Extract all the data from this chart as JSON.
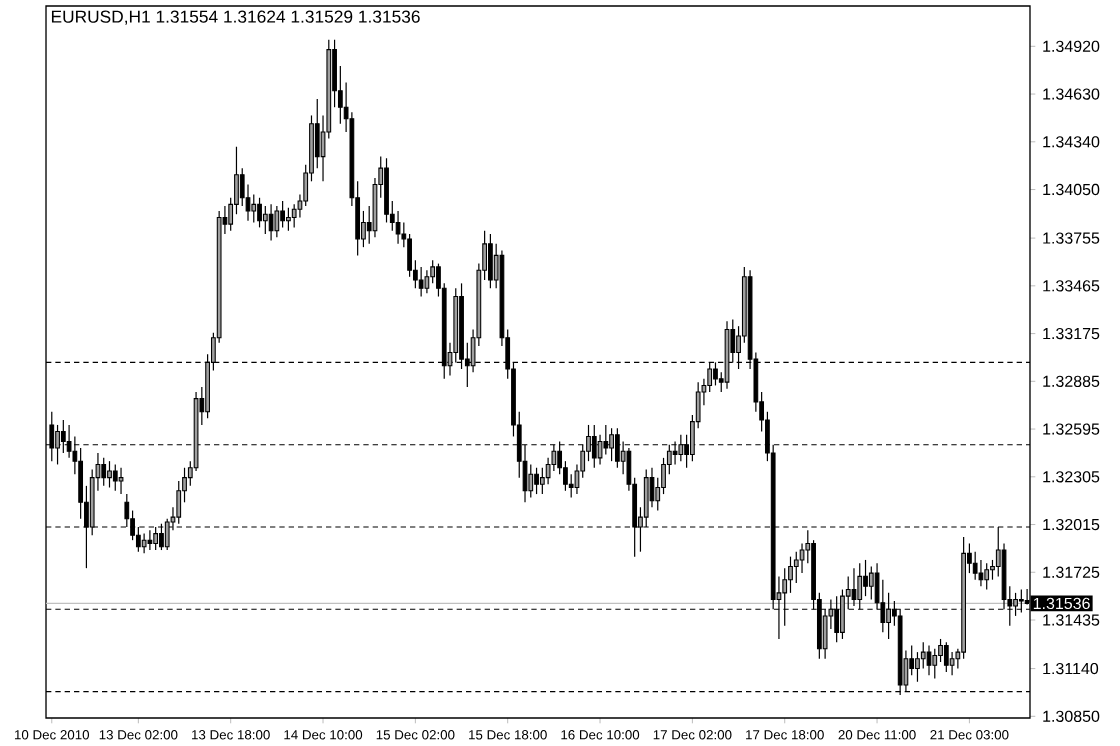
{
  "chart_data": {
    "type": "candlestick",
    "title": "EURUSD,H1  1.31554 1.31624 1.31529 1.31536",
    "categories": [
      "10 Dec 2010",
      null,
      null,
      null,
      null,
      null,
      null,
      null,
      null,
      null,
      null,
      null,
      null,
      null,
      null,
      "13 Dec 02:00",
      null,
      null,
      null,
      null,
      null,
      null,
      null,
      null,
      null,
      null,
      null,
      null,
      null,
      null,
      null,
      "13 Dec 18:00",
      null,
      null,
      null,
      null,
      null,
      null,
      null,
      null,
      null,
      null,
      null,
      null,
      null,
      null,
      null,
      "14 Dec 10:00",
      null,
      null,
      null,
      null,
      null,
      null,
      null,
      null,
      null,
      null,
      null,
      null,
      null,
      null,
      null,
      "15 Dec 02:00",
      null,
      null,
      null,
      null,
      null,
      null,
      null,
      null,
      null,
      null,
      null,
      null,
      null,
      null,
      null,
      "15 Dec 18:00",
      null,
      null,
      null,
      null,
      null,
      null,
      null,
      null,
      null,
      null,
      null,
      null,
      null,
      null,
      null,
      "16 Dec 10:00",
      null,
      null,
      null,
      null,
      null,
      null,
      null,
      null,
      null,
      null,
      null,
      null,
      null,
      null,
      null,
      "17 Dec 02:00",
      null,
      null,
      null,
      null,
      null,
      null,
      null,
      null,
      null,
      null,
      null,
      null,
      null,
      null,
      null,
      "17 Dec 18:00",
      null,
      null,
      null,
      null,
      null,
      null,
      null,
      null,
      null,
      null,
      null,
      null,
      null,
      null,
      null,
      "20 Dec 11:00",
      null,
      null,
      null,
      null,
      null,
      null,
      null,
      null,
      null,
      null,
      null,
      null,
      null,
      null,
      null,
      "21 Dec 03:00",
      null,
      null,
      null,
      null,
      null,
      null,
      null,
      null,
      null,
      null
    ],
    "ohlc": [
      [
        1.3262,
        1.327,
        1.324,
        1.3248
      ],
      [
        1.3248,
        1.3262,
        1.3238,
        1.3258
      ],
      [
        1.3258,
        1.3265,
        1.3245,
        1.3252
      ],
      [
        1.3252,
        1.3262,
        1.3242,
        1.3246
      ],
      [
        1.3246,
        1.3255,
        1.3232,
        1.324
      ],
      [
        1.324,
        1.3248,
        1.3205,
        1.3215
      ],
      [
        1.3215,
        1.3225,
        1.3175,
        1.32
      ],
      [
        1.32,
        1.3235,
        1.3195,
        1.323
      ],
      [
        1.323,
        1.3245,
        1.3222,
        1.3238
      ],
      [
        1.3238,
        1.3242,
        1.3225,
        1.323
      ],
      [
        1.323,
        1.324,
        1.3224,
        1.3234
      ],
      [
        1.3234,
        1.3238,
        1.3222,
        1.3228
      ],
      [
        1.3228,
        1.3236,
        1.322,
        1.323
      ],
      [
        1.3215,
        1.322,
        1.32,
        1.3205
      ],
      [
        1.3205,
        1.321,
        1.3192,
        1.3195
      ],
      [
        1.3195,
        1.32,
        1.3185,
        1.3188
      ],
      [
        1.3188,
        1.3196,
        1.3184,
        1.3192
      ],
      [
        1.3192,
        1.3198,
        1.3186,
        1.319
      ],
      [
        1.319,
        1.32,
        1.3186,
        1.3196
      ],
      [
        1.3196,
        1.3202,
        1.3186,
        1.3188
      ],
      [
        1.3188,
        1.3205,
        1.3186,
        1.3203
      ],
      [
        1.3203,
        1.3212,
        1.3198,
        1.3206
      ],
      [
        1.3206,
        1.3228,
        1.3202,
        1.3222
      ],
      [
        1.3222,
        1.3236,
        1.3215,
        1.323
      ],
      [
        1.323,
        1.324,
        1.3225,
        1.3236
      ],
      [
        1.3236,
        1.3282,
        1.3234,
        1.3278
      ],
      [
        1.3278,
        1.3285,
        1.3262,
        1.327
      ],
      [
        1.327,
        1.3305,
        1.3266,
        1.33
      ],
      [
        1.33,
        1.3318,
        1.3295,
        1.3315
      ],
      [
        1.3315,
        1.3392,
        1.3312,
        1.3388
      ],
      [
        1.3388,
        1.3395,
        1.3378,
        1.3384
      ],
      [
        1.3384,
        1.34,
        1.338,
        1.3396
      ],
      [
        1.3396,
        1.3431,
        1.339,
        1.3414
      ],
      [
        1.3414,
        1.3418,
        1.3395,
        1.34
      ],
      [
        1.34,
        1.3408,
        1.3386,
        1.3392
      ],
      [
        1.3392,
        1.3402,
        1.3385,
        1.3396
      ],
      [
        1.3396,
        1.34,
        1.3382,
        1.3386
      ],
      [
        1.3386,
        1.3395,
        1.3378,
        1.339
      ],
      [
        1.339,
        1.3396,
        1.3374,
        1.338
      ],
      [
        1.338,
        1.3395,
        1.3376,
        1.3392
      ],
      [
        1.3392,
        1.3398,
        1.3382,
        1.3386
      ],
      [
        1.3386,
        1.3394,
        1.338,
        1.3388
      ],
      [
        1.3388,
        1.3396,
        1.3382,
        1.3393
      ],
      [
        1.3393,
        1.3402,
        1.3388,
        1.3398
      ],
      [
        1.3398,
        1.342,
        1.3395,
        1.3415
      ],
      [
        1.3415,
        1.345,
        1.341,
        1.3445
      ],
      [
        1.3445,
        1.346,
        1.3418,
        1.3425
      ],
      [
        1.3425,
        1.345,
        1.341,
        1.344
      ],
      [
        1.344,
        1.3496,
        1.3436,
        1.349
      ],
      [
        1.349,
        1.3496,
        1.3455,
        1.3465
      ],
      [
        1.3465,
        1.348,
        1.3445,
        1.3455
      ],
      [
        1.3455,
        1.347,
        1.344,
        1.3448
      ],
      [
        1.3448,
        1.3452,
        1.3395,
        1.34
      ],
      [
        1.34,
        1.341,
        1.3365,
        1.3375
      ],
      [
        1.3375,
        1.3392,
        1.337,
        1.3385
      ],
      [
        1.3385,
        1.3395,
        1.3372,
        1.338
      ],
      [
        1.338,
        1.3412,
        1.3376,
        1.3408
      ],
      [
        1.3408,
        1.3425,
        1.34,
        1.3418
      ],
      [
        1.3418,
        1.3424,
        1.3385,
        1.339
      ],
      [
        1.339,
        1.3398,
        1.338,
        1.3385
      ],
      [
        1.3385,
        1.3392,
        1.3372,
        1.3378
      ],
      [
        1.3378,
        1.3385,
        1.337,
        1.3375
      ],
      [
        1.3375,
        1.3378,
        1.3352,
        1.3356
      ],
      [
        1.3356,
        1.3362,
        1.3345,
        1.335
      ],
      [
        1.335,
        1.3358,
        1.334,
        1.3345
      ],
      [
        1.3345,
        1.3356,
        1.3342,
        1.3352
      ],
      [
        1.3352,
        1.3362,
        1.3348,
        1.3358
      ],
      [
        1.3358,
        1.336,
        1.334,
        1.3345
      ],
      [
        1.3345,
        1.3348,
        1.329,
        1.3298
      ],
      [
        1.3298,
        1.3312,
        1.3292,
        1.3306
      ],
      [
        1.3306,
        1.3345,
        1.33,
        1.334
      ],
      [
        1.334,
        1.3348,
        1.3296,
        1.3302
      ],
      [
        1.3302,
        1.3312,
        1.3285,
        1.3298
      ],
      [
        1.3298,
        1.332,
        1.3294,
        1.3315
      ],
      [
        1.3315,
        1.336,
        1.331,
        1.3356
      ],
      [
        1.3356,
        1.338,
        1.335,
        1.3372
      ],
      [
        1.3372,
        1.3378,
        1.3345,
        1.335
      ],
      [
        1.335,
        1.3372,
        1.3345,
        1.3365
      ],
      [
        1.3365,
        1.3368,
        1.331,
        1.3315
      ],
      [
        1.3315,
        1.332,
        1.329,
        1.3296
      ],
      [
        1.3296,
        1.33,
        1.3255,
        1.3262
      ],
      [
        1.3262,
        1.327,
        1.323,
        1.324
      ],
      [
        1.324,
        1.325,
        1.3215,
        1.3222
      ],
      [
        1.3222,
        1.3238,
        1.3218,
        1.3232
      ],
      [
        1.3232,
        1.3236,
        1.322,
        1.3226
      ],
      [
        1.3226,
        1.3236,
        1.322,
        1.323
      ],
      [
        1.323,
        1.3242,
        1.3226,
        1.3238
      ],
      [
        1.3238,
        1.325,
        1.3234,
        1.3246
      ],
      [
        1.3246,
        1.3252,
        1.3232,
        1.3236
      ],
      [
        1.3236,
        1.324,
        1.3222,
        1.3226
      ],
      [
        1.3226,
        1.3232,
        1.3218,
        1.3224
      ],
      [
        1.3224,
        1.3238,
        1.322,
        1.3234
      ],
      [
        1.3234,
        1.325,
        1.323,
        1.3246
      ],
      [
        1.3246,
        1.3262,
        1.324,
        1.3255
      ],
      [
        1.3255,
        1.3262,
        1.3236,
        1.3242
      ],
      [
        1.3242,
        1.3256,
        1.3238,
        1.3252
      ],
      [
        1.3252,
        1.3262,
        1.3244,
        1.3248
      ],
      [
        1.3248,
        1.326,
        1.324,
        1.3256
      ],
      [
        1.3256,
        1.326,
        1.3236,
        1.324
      ],
      [
        1.324,
        1.3252,
        1.3232,
        1.3246
      ],
      [
        1.3246,
        1.3248,
        1.3222,
        1.3226
      ],
      [
        1.3226,
        1.323,
        1.3182,
        1.32
      ],
      [
        1.32,
        1.3212,
        1.3185,
        1.3206
      ],
      [
        1.3206,
        1.3235,
        1.32,
        1.323
      ],
      [
        1.323,
        1.3236,
        1.3212,
        1.3216
      ],
      [
        1.3216,
        1.323,
        1.321,
        1.3224
      ],
      [
        1.3224,
        1.3242,
        1.322,
        1.3238
      ],
      [
        1.3238,
        1.325,
        1.3232,
        1.3246
      ],
      [
        1.3246,
        1.3252,
        1.3238,
        1.3244
      ],
      [
        1.3244,
        1.3256,
        1.324,
        1.325
      ],
      [
        1.325,
        1.3256,
        1.3236,
        1.3244
      ],
      [
        1.3244,
        1.3268,
        1.324,
        1.3264
      ],
      [
        1.3264,
        1.3288,
        1.326,
        1.3282
      ],
      [
        1.3282,
        1.329,
        1.3274,
        1.3286
      ],
      [
        1.3286,
        1.33,
        1.3282,
        1.3296
      ],
      [
        1.3296,
        1.33,
        1.3286,
        1.329
      ],
      [
        1.329,
        1.3294,
        1.3282,
        1.3288
      ],
      [
        1.3288,
        1.3325,
        1.3284,
        1.332
      ],
      [
        1.332,
        1.3326,
        1.33,
        1.3306
      ],
      [
        1.3306,
        1.3322,
        1.3296,
        1.3316
      ],
      [
        1.3316,
        1.3358,
        1.3312,
        1.3352
      ],
      [
        1.3352,
        1.3356,
        1.3296,
        1.3302
      ],
      [
        1.3302,
        1.3306,
        1.327,
        1.3276
      ],
      [
        1.3276,
        1.3282,
        1.3258,
        1.3265
      ],
      [
        1.3265,
        1.327,
        1.324,
        1.3245
      ],
      [
        1.3245,
        1.325,
        1.315,
        1.3156
      ],
      [
        1.3156,
        1.317,
        1.3132,
        1.316
      ],
      [
        1.316,
        1.3175,
        1.314,
        1.3168
      ],
      [
        1.3168,
        1.3182,
        1.316,
        1.3176
      ],
      [
        1.3176,
        1.3185,
        1.3166,
        1.318
      ],
      [
        1.318,
        1.319,
        1.3172,
        1.3186
      ],
      [
        1.3186,
        1.3198,
        1.3178,
        1.319
      ],
      [
        1.319,
        1.3192,
        1.315,
        1.3156
      ],
      [
        1.3156,
        1.316,
        1.312,
        1.3126
      ],
      [
        1.3126,
        1.315,
        1.312,
        1.3146
      ],
      [
        1.3146,
        1.3156,
        1.3138,
        1.315
      ],
      [
        1.315,
        1.3158,
        1.313,
        1.3136
      ],
      [
        1.3136,
        1.3162,
        1.3132,
        1.3158
      ],
      [
        1.3158,
        1.317,
        1.315,
        1.3162
      ],
      [
        1.3162,
        1.3175,
        1.3152,
        1.3156
      ],
      [
        1.3156,
        1.3178,
        1.315,
        1.317
      ],
      [
        1.317,
        1.318,
        1.3158,
        1.3164
      ],
      [
        1.3164,
        1.3176,
        1.3156,
        1.3172
      ],
      [
        1.3172,
        1.3178,
        1.315,
        1.3154
      ],
      [
        1.3154,
        1.3168,
        1.3136,
        1.3142
      ],
      [
        1.3142,
        1.316,
        1.3132,
        1.315
      ],
      [
        1.315,
        1.3155,
        1.314,
        1.3146
      ],
      [
        1.3146,
        1.315,
        1.3098,
        1.3104
      ],
      [
        1.3104,
        1.3125,
        1.31,
        1.312
      ],
      [
        1.312,
        1.3128,
        1.311,
        1.3114
      ],
      [
        1.3114,
        1.3124,
        1.3106,
        1.312
      ],
      [
        1.312,
        1.313,
        1.3114,
        1.3124
      ],
      [
        1.3124,
        1.3128,
        1.311,
        1.3116
      ],
      [
        1.3116,
        1.3126,
        1.3108,
        1.3122
      ],
      [
        1.3122,
        1.3132,
        1.3118,
        1.3128
      ],
      [
        1.3128,
        1.313,
        1.3112,
        1.3116
      ],
      [
        1.3116,
        1.3124,
        1.311,
        1.312
      ],
      [
        1.312,
        1.3126,
        1.3114,
        1.3124
      ],
      [
        1.3124,
        1.3194,
        1.312,
        1.3184
      ],
      [
        1.3184,
        1.319,
        1.3172,
        1.3178
      ],
      [
        1.3178,
        1.3185,
        1.3168,
        1.3172
      ],
      [
        1.3172,
        1.318,
        1.3164,
        1.3168
      ],
      [
        1.3168,
        1.3178,
        1.3162,
        1.3174
      ],
      [
        1.3174,
        1.318,
        1.3168,
        1.3176
      ],
      [
        1.3176,
        1.32,
        1.317,
        1.3186
      ],
      [
        1.3186,
        1.319,
        1.315,
        1.3156
      ],
      [
        1.3156,
        1.3164,
        1.314,
        1.3152
      ],
      [
        1.3152,
        1.316,
        1.3146,
        1.3156
      ],
      [
        1.3156,
        1.3162,
        1.3148,
        1.3155
      ],
      [
        1.31554,
        1.31624,
        1.31529,
        1.31536
      ]
    ],
    "ylim": [
      1.3084,
      1.35165
    ],
    "yticks": [
      {
        "value": 1.3492,
        "label": "1.34920"
      },
      {
        "value": 1.3463,
        "label": "1.34630"
      },
      {
        "value": 1.3434,
        "label": "1.34340"
      },
      {
        "value": 1.3405,
        "label": "1.34050"
      },
      {
        "value": 1.33755,
        "label": "1.33755"
      },
      {
        "value": 1.33465,
        "label": "1.33465"
      },
      {
        "value": 1.33175,
        "label": "1.33175"
      },
      {
        "value": 1.32885,
        "label": "1.32885"
      },
      {
        "value": 1.32595,
        "label": "1.32595"
      },
      {
        "value": 1.32305,
        "label": "1.32305"
      },
      {
        "value": 1.32015,
        "label": "1.32015"
      },
      {
        "value": 1.31725,
        "label": "1.31725"
      },
      {
        "value": 1.31435,
        "label": "1.31435"
      },
      {
        "value": 1.3114,
        "label": "1.31140"
      },
      {
        "value": 1.3085,
        "label": "1.30850"
      }
    ],
    "ref_lines": [
      {
        "axis": "y",
        "value": 1.33,
        "color": "#000000",
        "line_style": "dashed"
      },
      {
        "axis": "y",
        "value": 1.325,
        "color": "#000000",
        "line_style": "dashed"
      },
      {
        "axis": "y",
        "value": 1.32,
        "color": "#000000",
        "line_style": "dashed"
      },
      {
        "axis": "y",
        "value": 1.315,
        "color": "#000000",
        "line_style": "dashed"
      },
      {
        "axis": "y",
        "value": 1.31,
        "color": "#000000",
        "line_style": "dashed"
      },
      {
        "axis": "y",
        "value": 1.31536,
        "label": "1.31536",
        "color": "#c0c0c0",
        "line_style": "solid"
      }
    ],
    "grid": false
  }
}
